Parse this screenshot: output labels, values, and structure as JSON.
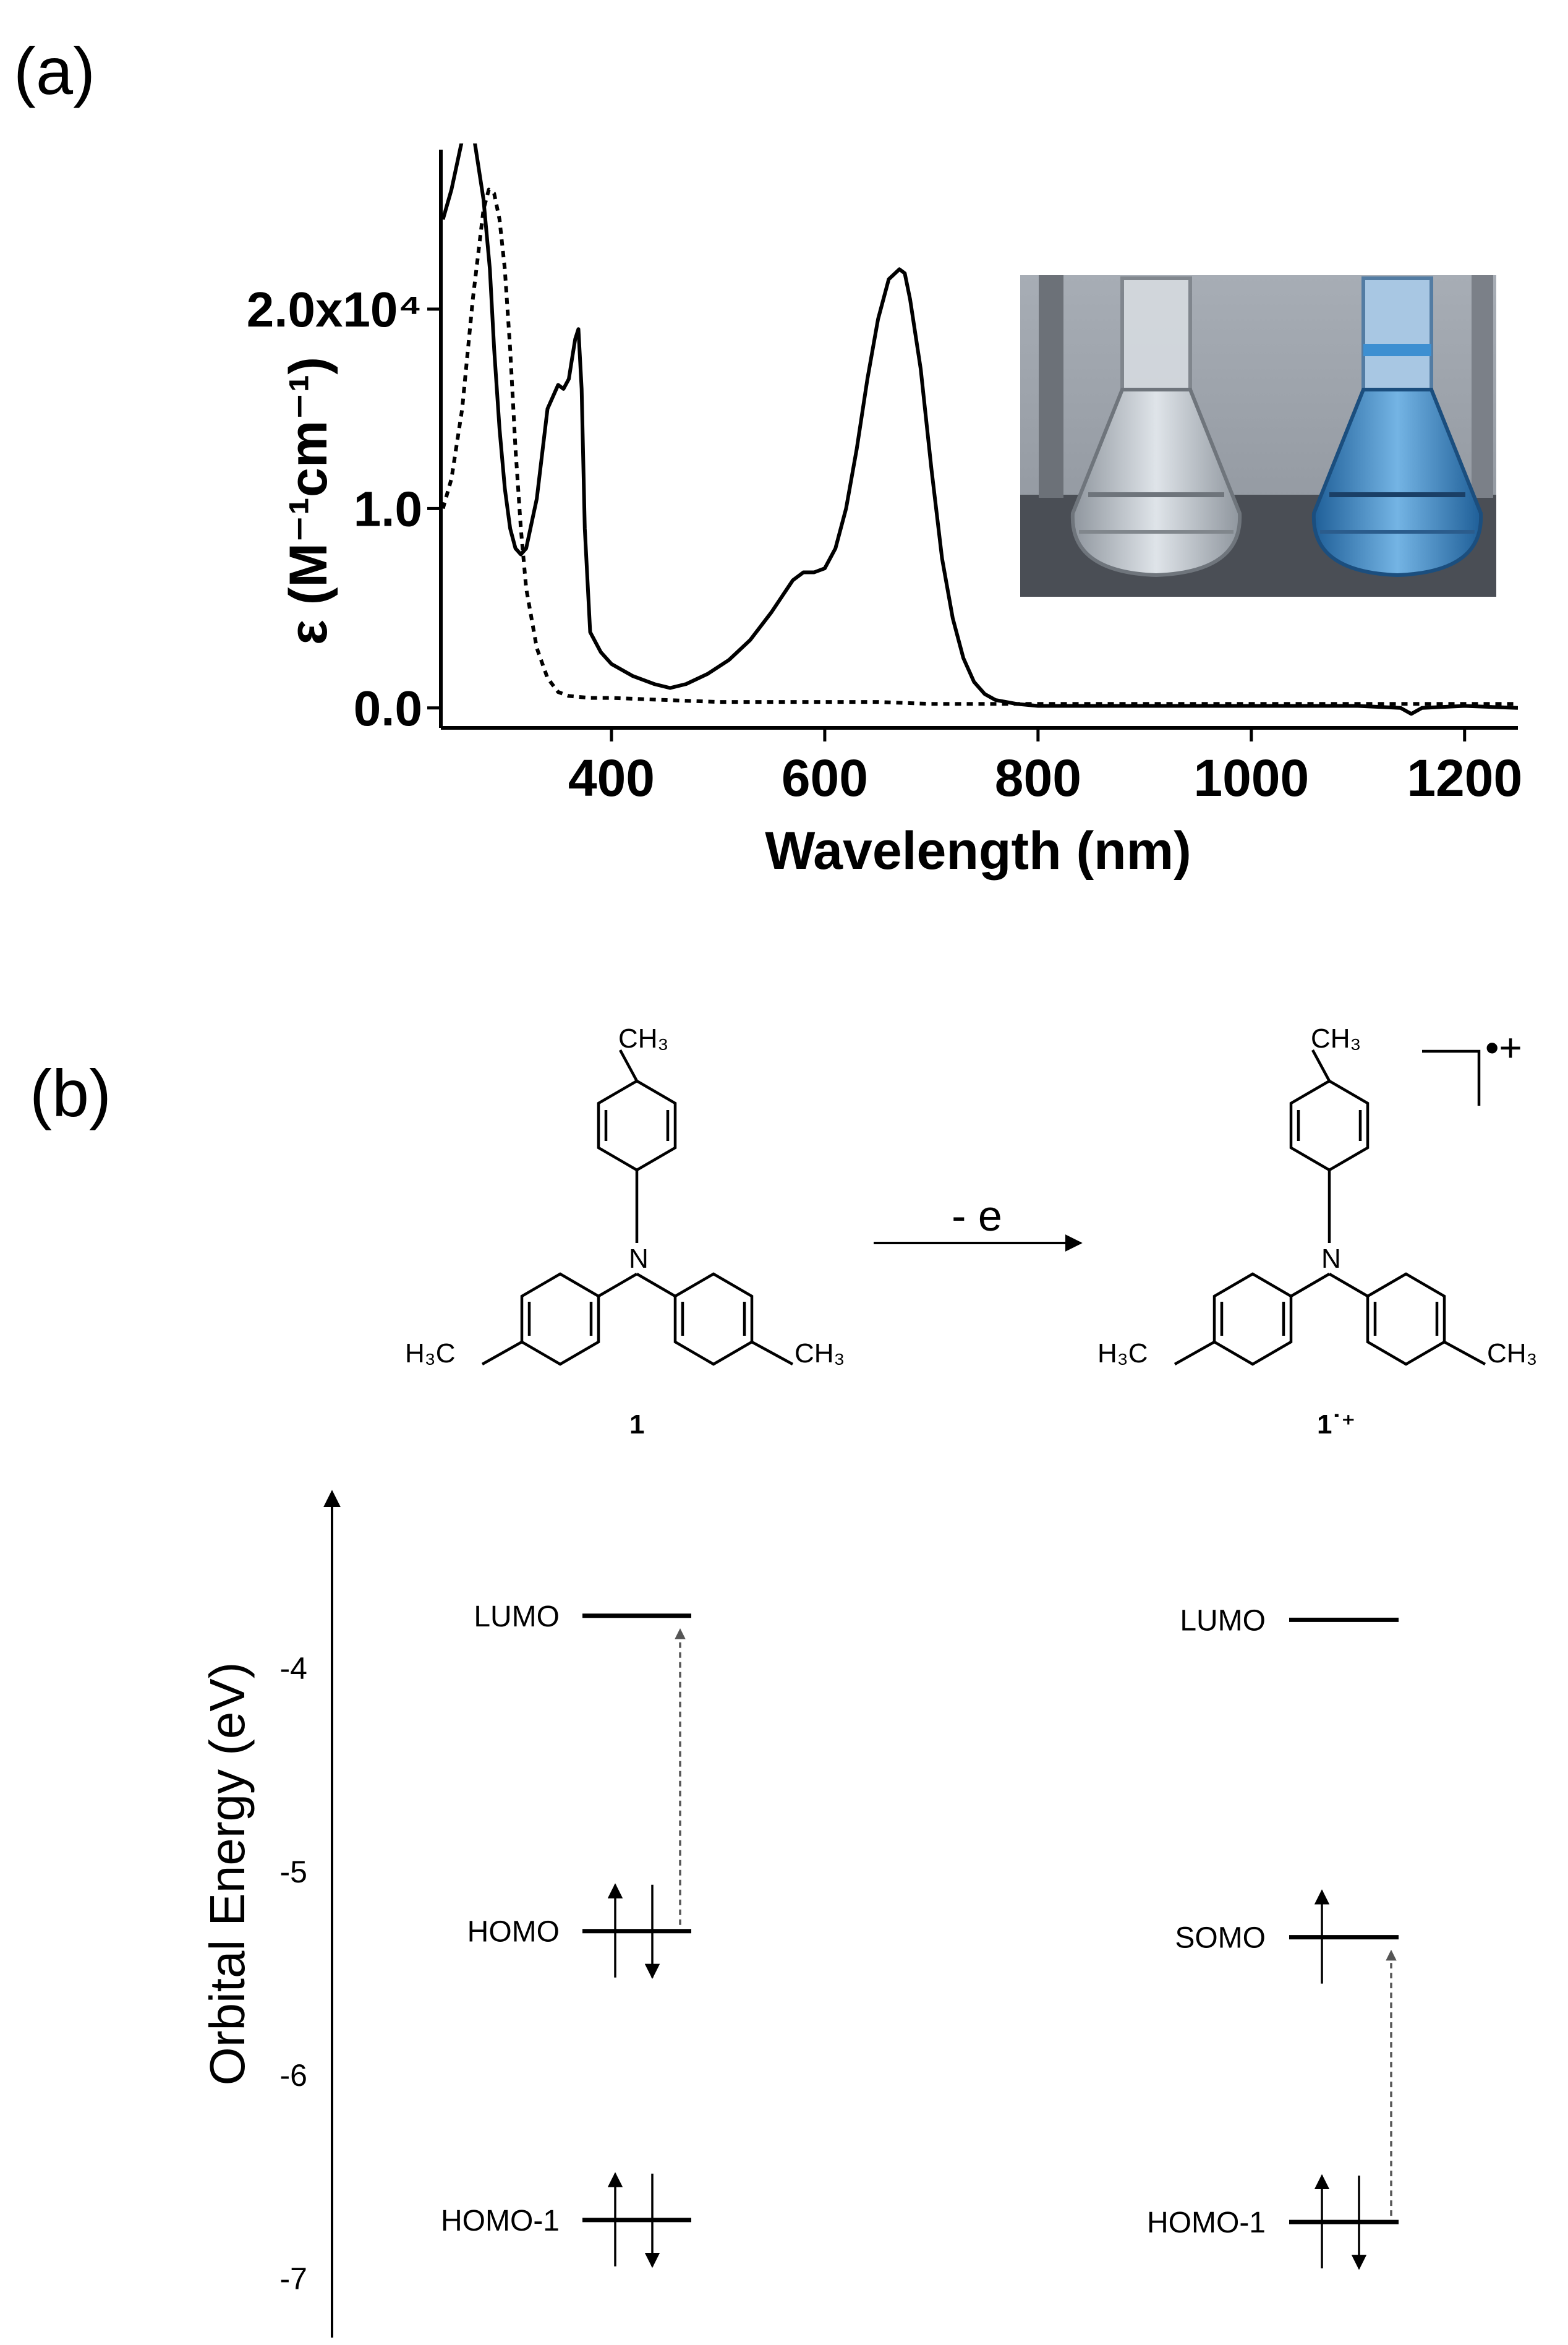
{
  "panel_a": {
    "label": "(a)",
    "chart_data": {
      "type": "line",
      "title": "",
      "xlabel": "Wavelength (nm)",
      "ylabel": "ε (M⁻¹cm⁻¹)",
      "xlim": [
        240,
        1250
      ],
      "ylim": [
        -0.1,
        2.8
      ],
      "y_multiplier_label": "x10⁴",
      "xticks": [
        400,
        600,
        800,
        1000,
        1200
      ],
      "xtick_labels": [
        "400",
        "600",
        "800",
        "1000",
        "1200"
      ],
      "yticks": [
        0.0,
        1.0,
        2.0
      ],
      "ytick_labels": [
        "0.0",
        "1.0",
        "2.0x10⁴"
      ],
      "grid": false,
      "series": [
        {
          "style": "solid",
          "x": [
            242,
            250,
            260,
            270,
            280,
            286,
            290,
            295,
            300,
            305,
            310,
            315,
            320,
            330,
            340,
            350,
            355,
            360,
            363,
            366,
            369,
            372,
            375,
            380,
            390,
            400,
            420,
            440,
            455,
            470,
            490,
            510,
            530,
            550,
            570,
            580,
            590,
            600,
            610,
            620,
            630,
            640,
            650,
            660,
            670,
            675,
            680,
            690,
            700,
            710,
            720,
            730,
            740,
            750,
            760,
            780,
            800,
            850,
            900,
            950,
            1000,
            1050,
            1100,
            1140,
            1150,
            1160,
            1200,
            1250
          ],
          "y": [
            2.45,
            2.6,
            2.85,
            2.9,
            2.55,
            2.2,
            1.8,
            1.4,
            1.1,
            0.9,
            0.8,
            0.77,
            0.8,
            1.05,
            1.5,
            1.62,
            1.6,
            1.65,
            1.75,
            1.85,
            1.9,
            1.6,
            0.9,
            0.38,
            0.28,
            0.22,
            0.16,
            0.12,
            0.1,
            0.12,
            0.17,
            0.24,
            0.34,
            0.48,
            0.64,
            0.68,
            0.68,
            0.7,
            0.8,
            1.0,
            1.3,
            1.65,
            1.95,
            2.15,
            2.2,
            2.18,
            2.05,
            1.7,
            1.2,
            0.75,
            0.45,
            0.25,
            0.13,
            0.07,
            0.04,
            0.02,
            0.01,
            0.01,
            0.01,
            0.01,
            0.01,
            0.01,
            0.01,
            0.0,
            -0.03,
            0.0,
            0.01,
            0.0
          ]
        },
        {
          "style": "dashed",
          "x": [
            242,
            250,
            260,
            270,
            280,
            285,
            290,
            295,
            300,
            305,
            310,
            315,
            320,
            330,
            340,
            350,
            360,
            380,
            400,
            450,
            500,
            550,
            600,
            650,
            700,
            800,
            900,
            1000,
            1100,
            1250
          ],
          "y": [
            1.0,
            1.15,
            1.5,
            2.05,
            2.5,
            2.6,
            2.58,
            2.45,
            2.2,
            1.8,
            1.3,
            0.9,
            0.6,
            0.3,
            0.15,
            0.08,
            0.06,
            0.05,
            0.05,
            0.04,
            0.03,
            0.03,
            0.03,
            0.03,
            0.02,
            0.02,
            0.02,
            0.02,
            0.02,
            0.02
          ]
        }
      ]
    },
    "photo": {
      "colors": {
        "wall": "#9aa1aa",
        "counter": "#4a4e55",
        "left_flask": "#c9cfd6",
        "right_flask": "#4d96d0"
      }
    }
  },
  "panel_b": {
    "label": "(b)",
    "molecule_1": {
      "substituents": [
        "CH₃",
        "H₃C",
        "CH₃"
      ],
      "center_atom": "N",
      "label": "1"
    },
    "molecule_2": {
      "substituents": [
        "CH₃",
        "H₃C",
        "CH₃"
      ],
      "center_atom": "N",
      "label": "1˙⁺",
      "charge": "•+"
    },
    "arrow_label": "- e",
    "energy_diagram": {
      "ylabel": "Orbital Energy (eV)",
      "ylim": [
        -7.2,
        -3.5
      ],
      "yticks": [
        -4,
        -5,
        -6,
        -7
      ],
      "ytick_labels": [
        "-4",
        "-5",
        "-6",
        "-7"
      ],
      "levels_neutral": [
        {
          "label": "LUMO",
          "energy": -3.75,
          "electrons": 0
        },
        {
          "label": "HOMO",
          "energy": -5.3,
          "electrons": 2
        },
        {
          "label": "HOMO-1",
          "energy": -6.72,
          "electrons": 2
        }
      ],
      "levels_cation": [
        {
          "label": "LUMO",
          "energy": -3.77,
          "electrons": 0
        },
        {
          "label": "SOMO",
          "energy": -5.33,
          "electrons": 1
        },
        {
          "label": "HOMO-1",
          "energy": -6.73,
          "electrons": 2
        }
      ]
    }
  }
}
